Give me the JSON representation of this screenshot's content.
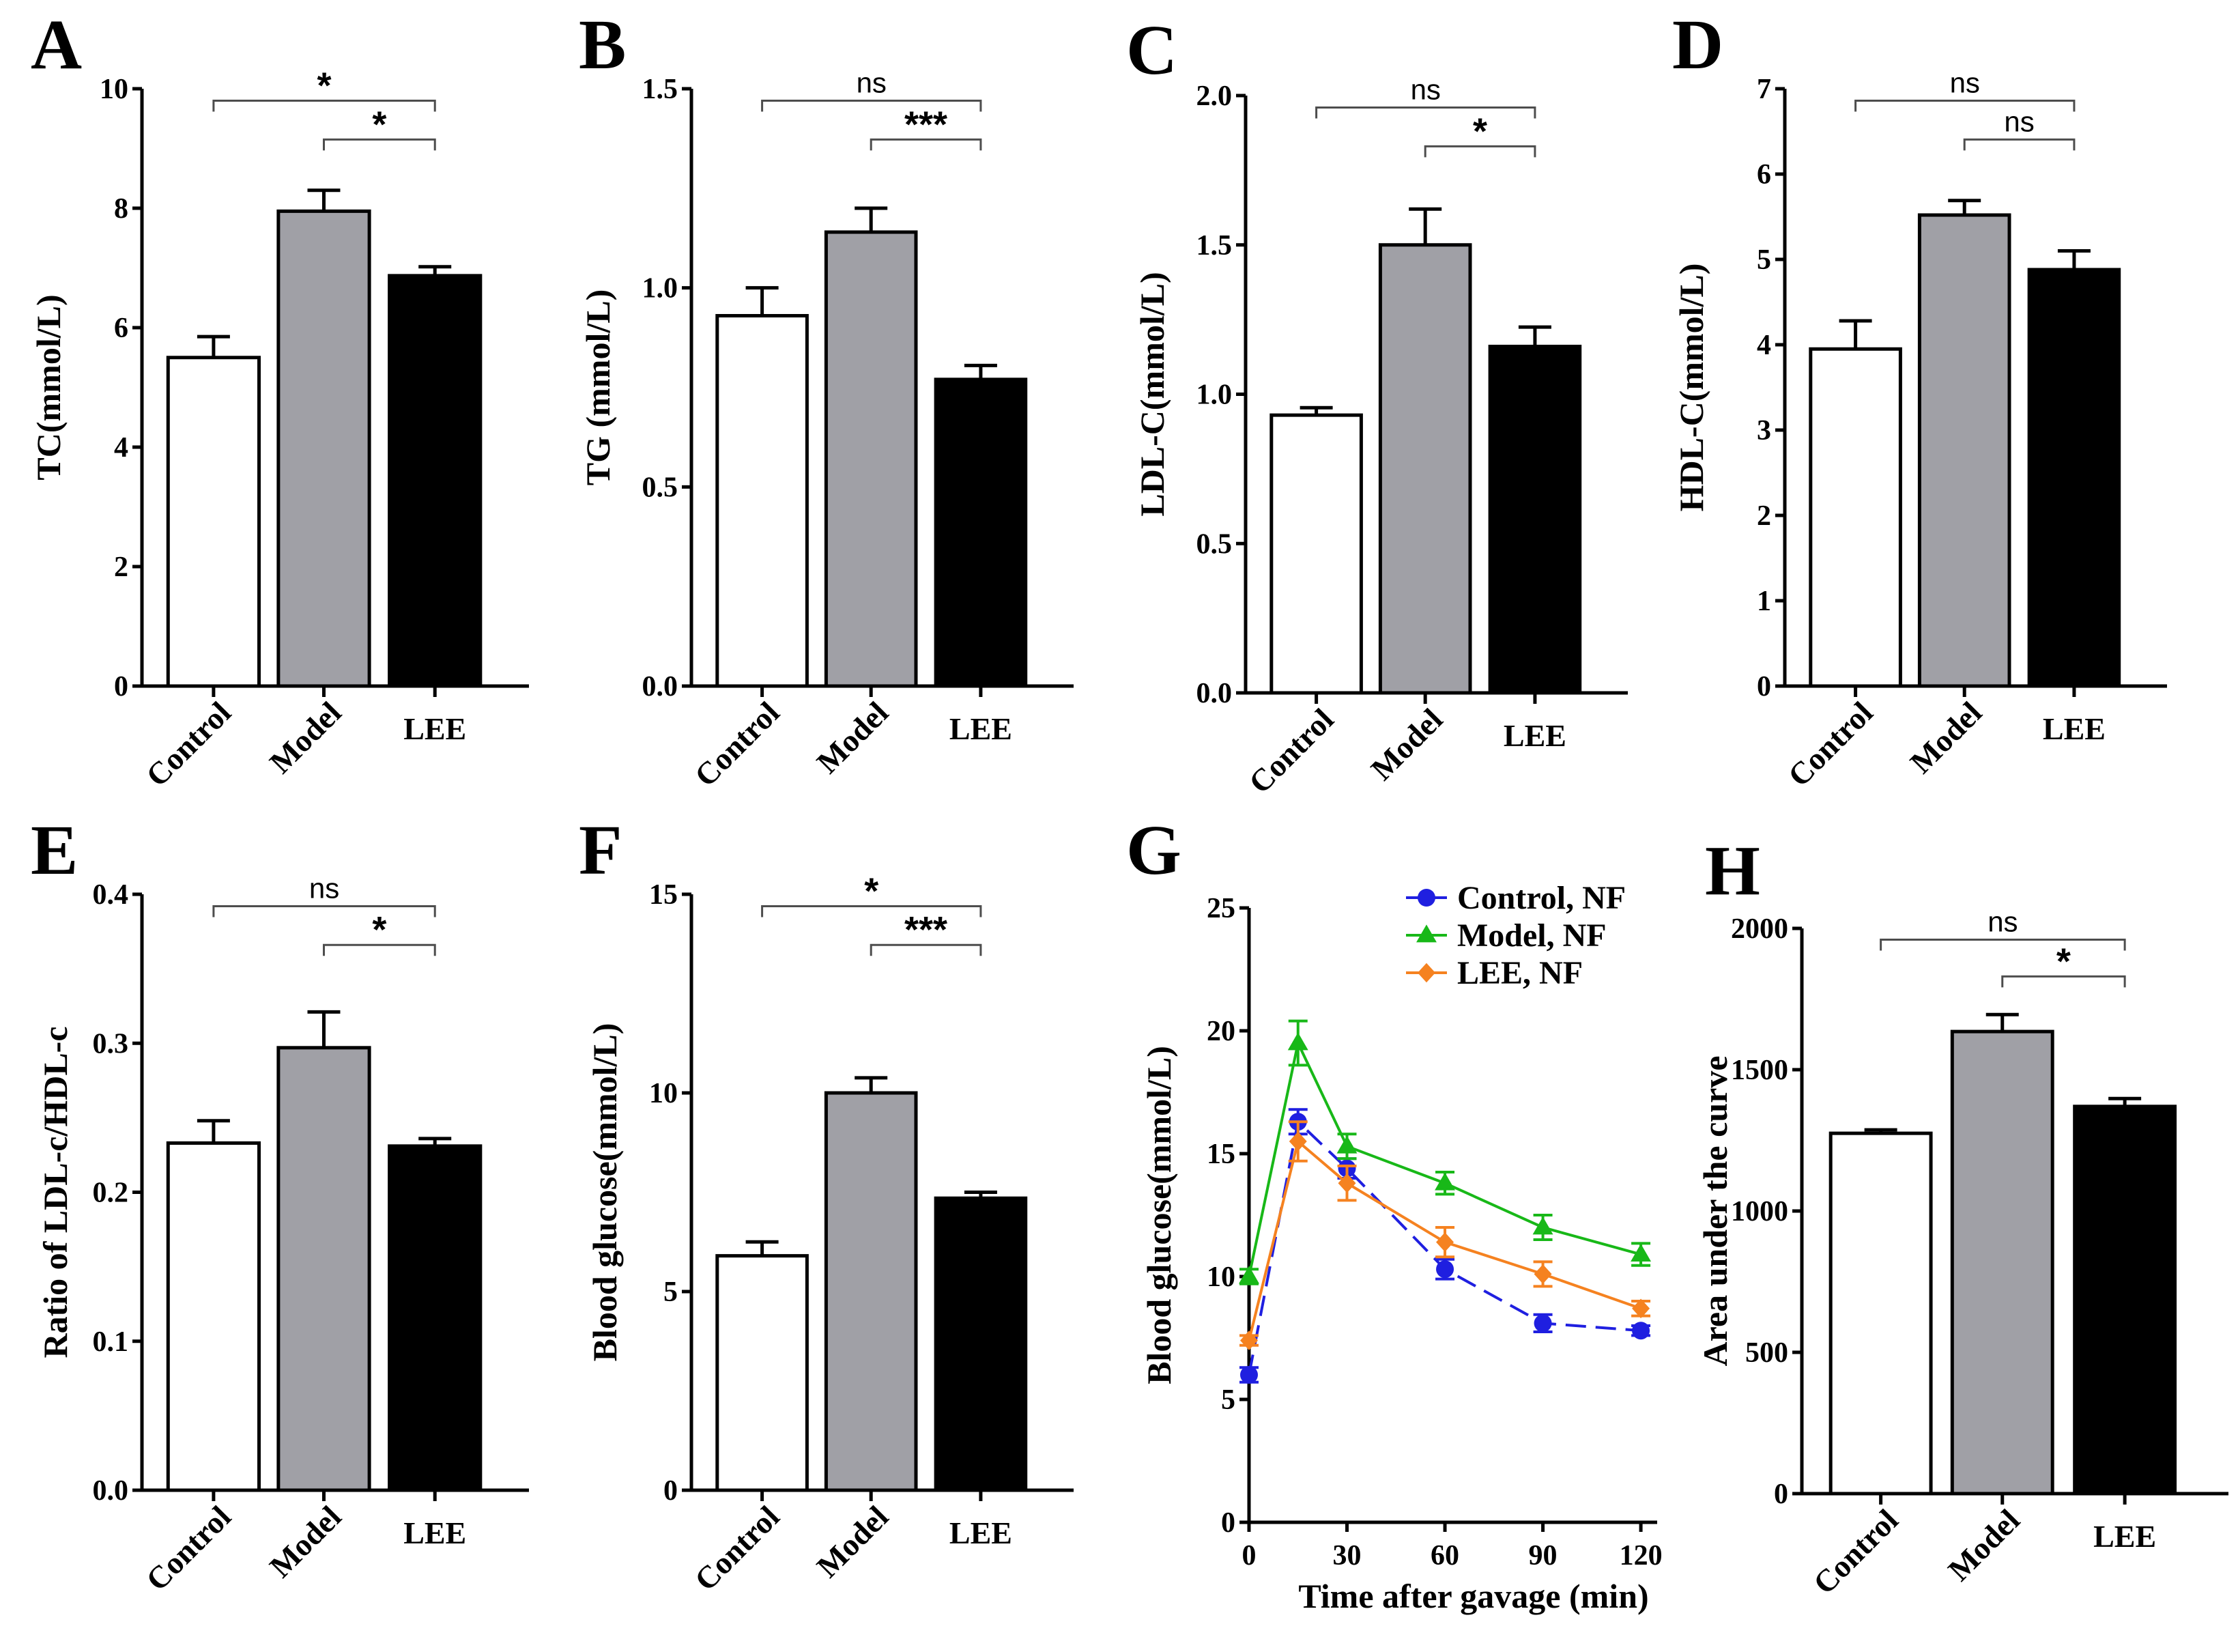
{
  "colors": {
    "control": "#ffffff",
    "model": "#a0a0a6",
    "lee": "#000000",
    "line_control": "#1f1fe0",
    "line_model": "#18b818",
    "line_lee": "#f58220",
    "bracket": "#4d4d4d"
  },
  "chart_data": [
    {
      "panel": "A",
      "type": "bar",
      "categories": [
        "Control",
        "Model",
        "LEE"
      ],
      "values": [
        5.5,
        7.95,
        6.87
      ],
      "errors": [
        0.35,
        0.35,
        0.15
      ],
      "ylabel": "TC(mmol/L)",
      "ylim": [
        0,
        10
      ],
      "yticks": [
        "0",
        "2",
        "4",
        "6",
        "8",
        "10"
      ],
      "significance": [
        {
          "from": 0,
          "to": 2,
          "label": "*"
        },
        {
          "from": 1,
          "to": 2,
          "label": "*"
        }
      ]
    },
    {
      "panel": "B",
      "type": "bar",
      "categories": [
        "Control",
        "Model",
        "LEE"
      ],
      "values": [
        0.93,
        1.14,
        0.77
      ],
      "errors": [
        0.07,
        0.06,
        0.035
      ],
      "ylabel": "TG (mmol/L)",
      "ylim": [
        0,
        1.5
      ],
      "yticks": [
        "0.0",
        "0.5",
        "1.0",
        "1.5"
      ],
      "significance": [
        {
          "from": 0,
          "to": 2,
          "label": "ns"
        },
        {
          "from": 1,
          "to": 2,
          "label": "***"
        }
      ]
    },
    {
      "panel": "C",
      "type": "bar",
      "categories": [
        "Control",
        "Model",
        "LEE"
      ],
      "values": [
        0.93,
        1.5,
        1.16
      ],
      "errors": [
        0.025,
        0.12,
        0.065
      ],
      "ylabel": "LDL-C(mmol/L)",
      "ylim": [
        0,
        2.0
      ],
      "yticks": [
        "0.0",
        "0.5",
        "1.0",
        "1.5",
        "2.0"
      ],
      "significance": [
        {
          "from": 0,
          "to": 2,
          "label": "ns"
        },
        {
          "from": 1,
          "to": 2,
          "label": "*"
        }
      ]
    },
    {
      "panel": "D",
      "type": "bar",
      "categories": [
        "Control",
        "Model",
        "LEE"
      ],
      "values": [
        3.95,
        5.52,
        4.88
      ],
      "errors": [
        0.33,
        0.17,
        0.22
      ],
      "ylabel": "HDL-C(mmol/L)",
      "ylim": [
        0,
        7
      ],
      "yticks": [
        "0",
        "1",
        "2",
        "3",
        "4",
        "5",
        "6",
        "7"
      ],
      "significance": [
        {
          "from": 0,
          "to": 2,
          "label": "ns"
        },
        {
          "from": 1,
          "to": 2,
          "label": "ns"
        }
      ]
    },
    {
      "panel": "E",
      "type": "bar",
      "categories": [
        "Control",
        "Model",
        "LEE"
      ],
      "values": [
        0.233,
        0.297,
        0.231
      ],
      "errors": [
        0.015,
        0.024,
        0.005
      ],
      "ylabel": "Ratio of LDL-c/HDL-c",
      "ylim": [
        0,
        0.4
      ],
      "yticks": [
        "0.0",
        "0.1",
        "0.2",
        "0.3",
        "0.4"
      ],
      "significance": [
        {
          "from": 0,
          "to": 2,
          "label": "ns"
        },
        {
          "from": 1,
          "to": 2,
          "label": "*"
        }
      ]
    },
    {
      "panel": "F",
      "type": "bar",
      "categories": [
        "Control",
        "Model",
        "LEE"
      ],
      "values": [
        5.9,
        10.0,
        7.35
      ],
      "errors": [
        0.35,
        0.38,
        0.15
      ],
      "ylabel": "Blood glucose(mmol/L)",
      "ylim": [
        0,
        15
      ],
      "yticks": [
        "0",
        "5",
        "10",
        "15"
      ],
      "significance": [
        {
          "from": 0,
          "to": 2,
          "label": "*"
        },
        {
          "from": 1,
          "to": 2,
          "label": "***"
        }
      ]
    },
    {
      "panel": "G",
      "type": "line",
      "x": [
        0,
        15,
        30,
        60,
        90,
        120
      ],
      "xticks": [
        "0",
        "30",
        "60",
        "90",
        "120"
      ],
      "xtick_values": [
        0,
        30,
        60,
        90,
        120
      ],
      "xlim": [
        0,
        125
      ],
      "ylim": [
        0,
        25
      ],
      "yticks": [
        "0",
        "5",
        "10",
        "15",
        "20",
        "25"
      ],
      "xlabel": "Time after gavage (min)",
      "ylabel": "Blood glucose(mmol/L)",
      "legend_position": "top-right",
      "series": [
        {
          "name": "Control, NF",
          "color_key": "line_control",
          "marker": "circle",
          "dashed": true,
          "values": [
            6.0,
            16.3,
            14.4,
            10.3,
            8.1,
            7.8
          ],
          "errors": [
            0.3,
            0.5,
            0.4,
            0.4,
            0.35,
            0.2
          ]
        },
        {
          "name": "Model, NF",
          "color_key": "line_model",
          "marker": "triangle",
          "dashed": false,
          "values": [
            10.0,
            19.5,
            15.3,
            13.8,
            12.0,
            10.9
          ],
          "errors": [
            0.3,
            0.9,
            0.5,
            0.45,
            0.5,
            0.45
          ]
        },
        {
          "name": "LEE, NF",
          "color_key": "line_lee",
          "marker": "diamond",
          "dashed": false,
          "values": [
            7.4,
            15.5,
            13.8,
            11.4,
            10.1,
            8.7
          ],
          "errors": [
            0.2,
            0.8,
            0.7,
            0.6,
            0.5,
            0.3
          ]
        }
      ]
    },
    {
      "panel": "H",
      "type": "bar",
      "categories": [
        "Control",
        "Model",
        "LEE"
      ],
      "values": [
        1275,
        1635,
        1370
      ],
      "errors": [
        12,
        60,
        28
      ],
      "ylabel": "Area under the curve",
      "ylim": [
        0,
        2000
      ],
      "yticks": [
        "0",
        "500",
        "1000",
        "1500",
        "2000"
      ],
      "significance": [
        {
          "from": 0,
          "to": 2,
          "label": "ns"
        },
        {
          "from": 1,
          "to": 2,
          "label": "*"
        }
      ]
    }
  ]
}
